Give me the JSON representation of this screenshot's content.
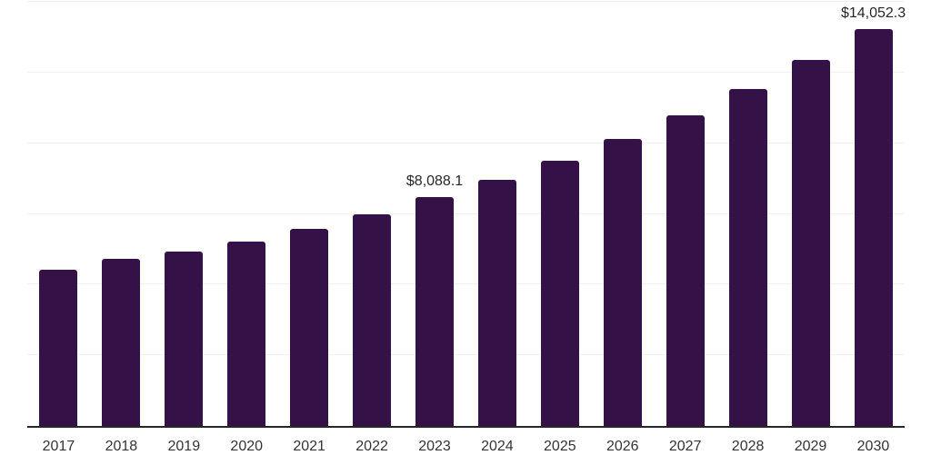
{
  "chart_data": {
    "type": "bar",
    "title": "",
    "categories": [
      "2017",
      "2018",
      "2019",
      "2020",
      "2021",
      "2022",
      "2023",
      "2024",
      "2025",
      "2026",
      "2027",
      "2028",
      "2029",
      "2030"
    ],
    "values": [
      5540,
      5900,
      6180,
      6530,
      6980,
      7490,
      8088.1,
      8690,
      9370,
      10150,
      10980,
      11920,
      12940,
      14052.3
    ],
    "data_labels": {
      "2023": "$8,088.1",
      "2030": "$14,052.3"
    },
    "xlabel": "",
    "ylabel": "",
    "ylim": [
      0,
      15000
    ],
    "gridline_step": 2500,
    "grid_on": true,
    "legend": "none",
    "colors": {
      "bar": "#341247",
      "axis_line": "#262626",
      "gridline": "#f2f2f2",
      "data_label_text": "#262626",
      "tick_text": "#333333",
      "background": "#ffffff"
    }
  }
}
